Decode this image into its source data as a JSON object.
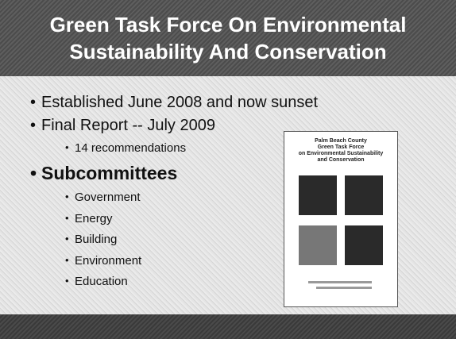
{
  "header": {
    "title": [
      "Green Task Force On Environmental",
      "Sustainability And Conservation"
    ]
  },
  "bullets": [
    {
      "text": "Established June 2008 and now sunset",
      "subitems": []
    },
    {
      "text": "Final Report -- July 2009",
      "subitems": [
        "14 recommendations"
      ]
    },
    {
      "text": "Subcommittees",
      "subitems": [
        "Government",
        "Energy",
        "Building",
        "Environment",
        "Education"
      ]
    }
  ],
  "report_cover": {
    "title_lines": [
      "Palm Beach County",
      "Green Task Force",
      "on Environmental Sustainability",
      "and Conservation"
    ]
  }
}
